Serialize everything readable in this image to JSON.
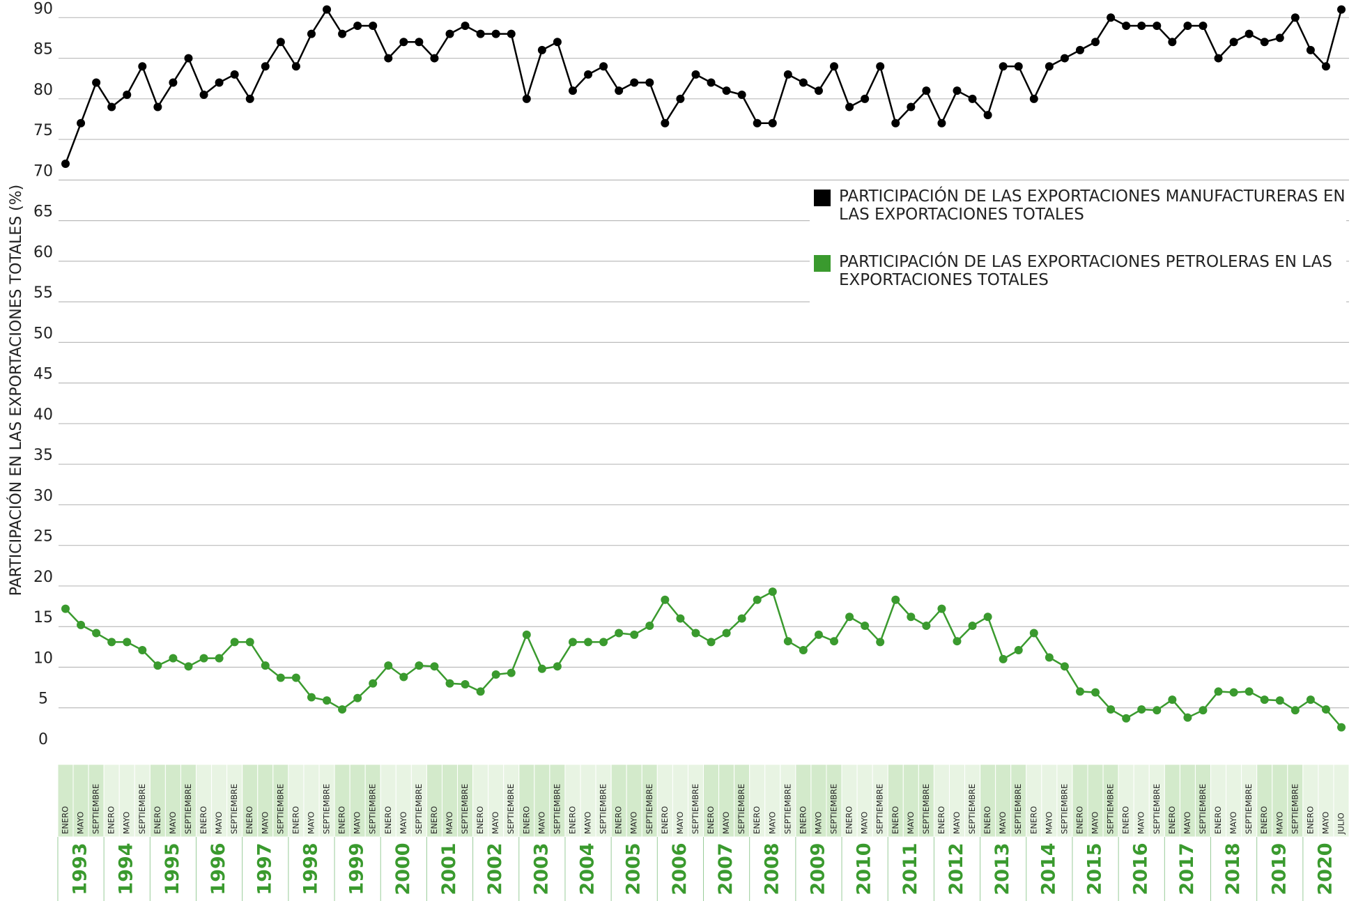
{
  "chart_data": {
    "type": "line",
    "y_axis_label": "PARTICIPACIÓN EN LAS EXPORTACIONES TOTALES (%)",
    "categories": [
      "ENERO",
      "MAYO",
      "SEPTIEMBRE",
      "ENERO",
      "MAYO",
      "SEPTIEMBRE",
      "ENERO",
      "MAYO",
      "SEPTIEMBRE",
      "ENERO",
      "MAYO",
      "SEPTIEMBRE",
      "ENERO",
      "MAYO",
      "SEPTIEMBRE",
      "ENERO",
      "MAYO",
      "SEPTIEMBRE",
      "ENERO",
      "MAYO",
      "SEPTIEMBRE",
      "ENERO",
      "MAYO",
      "SEPTIEMBRE",
      "ENERO",
      "MAYO",
      "SEPTIEMBRE",
      "ENERO",
      "MAYO",
      "SEPTIEMBRE",
      "ENERO",
      "MAYO",
      "SEPTIEMBRE",
      "ENERO",
      "MAYO",
      "SEPTIEMBRE",
      "ENERO",
      "MAYO",
      "SEPTIEMBRE",
      "ENERO",
      "MAYO",
      "SEPTIEMBRE",
      "ENERO",
      "MAYO",
      "SEPTIEMBRE",
      "ENERO",
      "MAYO",
      "SEPTIEMBRE",
      "ENERO",
      "MAYO",
      "SEPTIEMBRE",
      "ENERO",
      "MAYO",
      "SEPTIEMBRE",
      "ENERO",
      "MAYO",
      "SEPTIEMBRE",
      "ENERO",
      "MAYO",
      "SEPTIEMBRE",
      "ENERO",
      "MAYO",
      "SEPTIEMBRE",
      "ENERO",
      "MAYO",
      "SEPTIEMBRE",
      "ENERO",
      "MAYO",
      "SEPTIEMBRE",
      "ENERO",
      "MAYO",
      "SEPTIEMBRE",
      "ENERO",
      "MAYO",
      "SEPTIEMBRE",
      "ENERO",
      "MAYO",
      "SEPTIEMBRE",
      "ENERO",
      "MAYO",
      "SEPTIEMBRE",
      "ENERO",
      "MAYO",
      "JULIO"
    ],
    "years": [
      "1993",
      "1994",
      "1995",
      "1996",
      "1997",
      "1998",
      "1999",
      "2000",
      "2001",
      "2002",
      "2003",
      "2004",
      "2005",
      "2006",
      "2007",
      "2008",
      "2009",
      "2010",
      "2011",
      "2012",
      "2013",
      "2014",
      "2015",
      "2016",
      "2017",
      "2018",
      "2019",
      "2020"
    ],
    "series": [
      {
        "name": "PARTICIPACIÓN DE LAS EXPORTACIONES MANUFACTURERAS EN LAS EXPORTACIONES TOTALES",
        "color": "#000000",
        "values": [
          72,
          77,
          82,
          79,
          80.5,
          84,
          79,
          82,
          85,
          80.5,
          82,
          83,
          80,
          84,
          87,
          84,
          88,
          91,
          88,
          89,
          89,
          85,
          87,
          87,
          85,
          88,
          89,
          88,
          88,
          88,
          80,
          86,
          87,
          81,
          83,
          84,
          81,
          82,
          82,
          77,
          80,
          83,
          82,
          81,
          80.5,
          77,
          77,
          83,
          82,
          81,
          84,
          79,
          80,
          84,
          77,
          79,
          81,
          77,
          81,
          80,
          78,
          84,
          84,
          80,
          84,
          85,
          86,
          87,
          90,
          89,
          89,
          89,
          87,
          89,
          89,
          85,
          87,
          88,
          87,
          87.5,
          90,
          86,
          84,
          91
        ]
      },
      {
        "name": "PARTICIPACIÓN DE LAS EXPORTACIONES PETROLERAS EN LAS EXPORTACIONES TOTALES",
        "color": "#3a9a2e",
        "values": [
          17.2,
          15.2,
          14.2,
          13.1,
          13.1,
          12.1,
          10.2,
          11.1,
          10.1,
          11.1,
          11.1,
          13.1,
          13.1,
          10.2,
          8.7,
          8.7,
          6.3,
          5.9,
          4.8,
          6.2,
          8,
          10.2,
          8.8,
          10.2,
          10.1,
          8,
          7.9,
          7,
          9.1,
          9.3,
          14,
          9.8,
          10.1,
          13.1,
          13.1,
          13.1,
          14.2,
          14,
          15.1,
          18.3,
          16,
          14.2,
          13.1,
          14.2,
          16,
          18.3,
          19.3,
          13.2,
          12.1,
          14,
          13.2,
          16.2,
          15.1,
          13.1,
          18.3,
          16.2,
          15.1,
          17.2,
          13.2,
          15.1,
          16.2,
          11,
          12.1,
          14.2,
          11.2,
          10.1,
          7,
          6.9,
          4.8,
          3.7,
          4.8,
          4.7,
          6,
          3.8,
          4.7,
          7,
          6.9,
          7,
          6,
          5.9,
          4.7,
          6,
          4.8,
          2.6
        ]
      }
    ],
    "ylim": [
      0,
      92
    ],
    "yticks": [
      0,
      5,
      10,
      15,
      20,
      25,
      30,
      35,
      40,
      45,
      50,
      55,
      60,
      65,
      70,
      75,
      80,
      85,
      90
    ],
    "grid": true
  }
}
